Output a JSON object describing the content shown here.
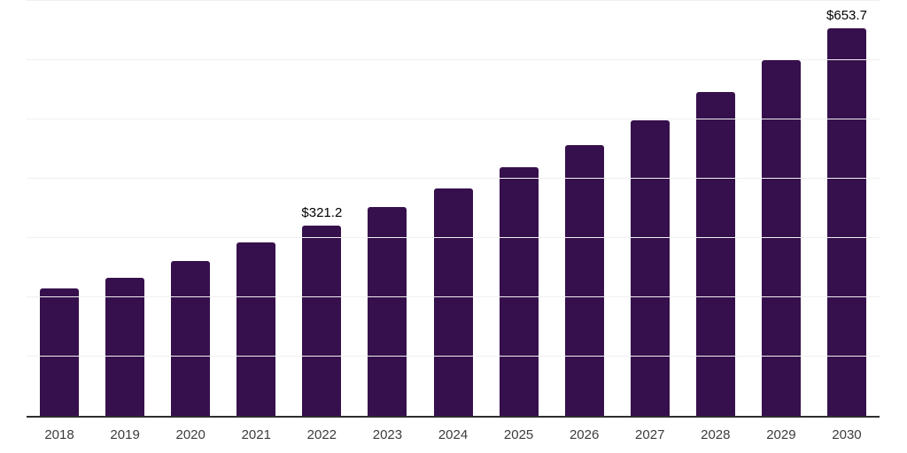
{
  "chart_data": {
    "type": "bar",
    "title": "",
    "xlabel": "",
    "ylabel": "",
    "categories": [
      "2018",
      "2019",
      "2020",
      "2021",
      "2022",
      "2023",
      "2024",
      "2025",
      "2026",
      "2027",
      "2028",
      "2029",
      "2030"
    ],
    "values": [
      214.7,
      232.3,
      260.8,
      293.2,
      321.2,
      351.6,
      383.0,
      418.9,
      457.3,
      498.7,
      546.1,
      599.5,
      653.7
    ],
    "point_labels": [
      "",
      "",
      "",
      "",
      "$321.2",
      "",
      "",
      "",
      "",
      "",
      "",
      "",
      "$653.7"
    ],
    "ylim": [
      0,
      700
    ],
    "gridline_step": 100,
    "grid": true,
    "legend": false,
    "y_axis_labels_shown": false,
    "colors": {
      "bar": "#36104D",
      "axis": "#2E2E2E",
      "gridline": "#F0F0F0",
      "value_label": "#000000",
      "tick_label": "#3C3C3C",
      "background": "#FFFFFF"
    }
  }
}
